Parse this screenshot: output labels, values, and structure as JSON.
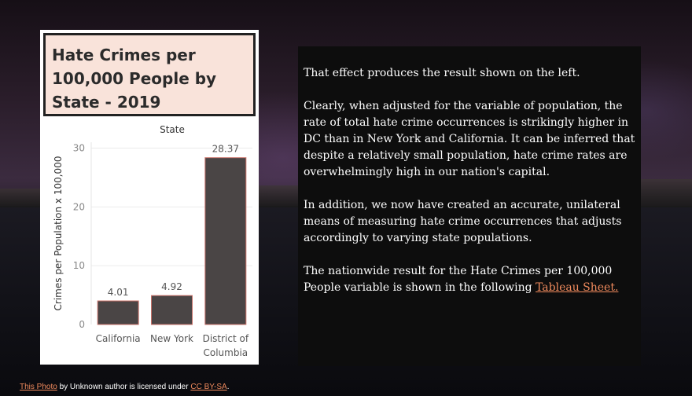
{
  "slide": {
    "title": "Hate Crimes per\n100,000 People by\nState - 2019",
    "text_paragraphs": [
      "That effect produces the result shown on the left.",
      "Clearly, when adjusted for the variable of population, the rate of total hate crime occurrences is strikingly higher in DC than in New York and California. It can be inferred that despite a relatively small population, hate crime rates are overwhelmingly high in our nation's capital.",
      "In addition, we now have created an accurate, unilateral means of measuring hate crime occurrences that adjusts accordingly to varying state populations."
    ],
    "last_paragraph_prefix": "The nationwide result for the Hate Crimes per 100,000 People variable is shown in the following ",
    "link_text": "Tableau Sheet."
  },
  "credit": {
    "photo_link": "This Photo",
    "middle": " by Unknown author is licensed under ",
    "license_link": "CC BY-SA",
    "end": "."
  },
  "chart_data": {
    "type": "bar",
    "title": "State",
    "ylabel": "Crimes per Population x 100,000",
    "categories": [
      "California",
      "New York",
      "District of Columbia"
    ],
    "category_lines": [
      [
        "California"
      ],
      [
        "New York"
      ],
      [
        "District of",
        "Columbia"
      ]
    ],
    "values": [
      4.01,
      4.92,
      28.37
    ],
    "value_labels": [
      "4.01",
      "4.92",
      "28.37"
    ],
    "yticks": [
      0,
      10,
      20,
      30
    ],
    "ylim": [
      0,
      31
    ],
    "grid": true,
    "colors": {
      "bar": "#4a4545",
      "bar_stroke": "#c9726a"
    }
  }
}
